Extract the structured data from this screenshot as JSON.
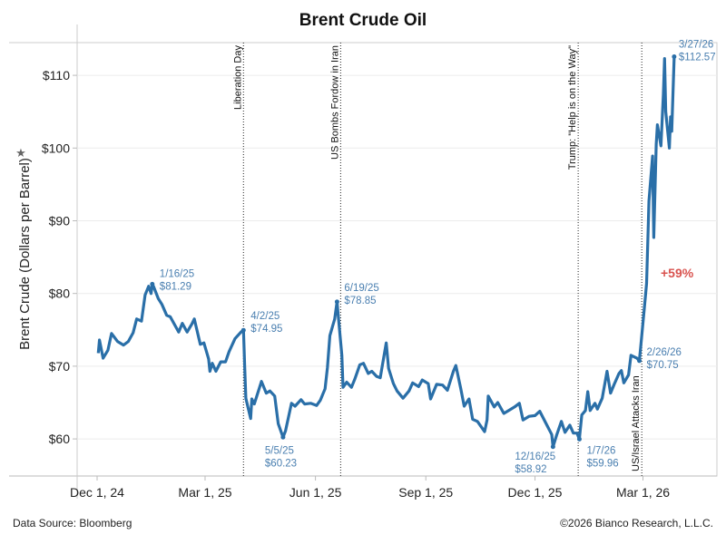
{
  "footer": {
    "source": "Data Source: Bloomberg",
    "copyright": "©2026 Bianco Research, L.L.C."
  },
  "chart_data": {
    "type": "line",
    "title": "Brent Crude Oil",
    "ylabel": "Brent Crude (Dollars per Barrel)",
    "xlabel": "",
    "ylim": [
      54.9,
      114.5
    ],
    "xlim": [
      "2024-11-14",
      "2026-04-30"
    ],
    "grid": true,
    "y_ticks": [
      {
        "value": 60,
        "label": "$60"
      },
      {
        "value": 70,
        "label": "$70"
      },
      {
        "value": 80,
        "label": "$80"
      },
      {
        "value": 90,
        "label": "$90"
      },
      {
        "value": 100,
        "label": "$100"
      },
      {
        "value": 110,
        "label": "$110"
      }
    ],
    "x_ticks": [
      {
        "date": "2024-12-01",
        "label": "Dec 1, 24"
      },
      {
        "date": "2025-03-01",
        "label": "Mar 1, 25"
      },
      {
        "date": "2025-06-01",
        "label": "Jun 1, 25"
      },
      {
        "date": "2025-09-01",
        "label": "Sep 1, 25"
      },
      {
        "date": "2025-12-01",
        "label": "Dec 1, 25"
      },
      {
        "date": "2026-03-01",
        "label": "Mar 1, 26"
      }
    ],
    "line_color": "#2a6fa8",
    "annotation_color": "#4a7fb0",
    "series": [
      {
        "points": [
          [
            "2024-12-02",
            71.8
          ],
          [
            "2024-12-03",
            73.6
          ],
          [
            "2024-12-06",
            71.1
          ],
          [
            "2024-12-10",
            72.2
          ],
          [
            "2024-12-13",
            74.5
          ],
          [
            "2024-12-18",
            73.4
          ],
          [
            "2024-12-23",
            72.9
          ],
          [
            "2024-12-27",
            73.4
          ],
          [
            "2024-12-31",
            74.6
          ],
          [
            "2025-01-03",
            76.5
          ],
          [
            "2025-01-07",
            76.2
          ],
          [
            "2025-01-10",
            79.8
          ],
          [
            "2025-01-13",
            81.0
          ],
          [
            "2025-01-15",
            80.0
          ],
          [
            "2025-01-16",
            81.29
          ],
          [
            "2025-01-17",
            81.0
          ],
          [
            "2025-01-21",
            79.3
          ],
          [
            "2025-01-24",
            78.5
          ],
          [
            "2025-01-28",
            77.0
          ],
          [
            "2025-01-31",
            76.8
          ],
          [
            "2025-02-04",
            75.6
          ],
          [
            "2025-02-07",
            74.7
          ],
          [
            "2025-02-10",
            75.9
          ],
          [
            "2025-02-13",
            75.0
          ],
          [
            "2025-02-14",
            74.7
          ],
          [
            "2025-02-18",
            75.8
          ],
          [
            "2025-02-20",
            76.5
          ],
          [
            "2025-02-25",
            73.0
          ],
          [
            "2025-02-28",
            73.2
          ],
          [
            "2025-03-04",
            71.0
          ],
          [
            "2025-03-05",
            69.3
          ],
          [
            "2025-03-07",
            70.4
          ],
          [
            "2025-03-10",
            69.3
          ],
          [
            "2025-03-14",
            70.6
          ],
          [
            "2025-03-18",
            70.6
          ],
          [
            "2025-03-21",
            72.0
          ],
          [
            "2025-03-26",
            73.8
          ],
          [
            "2025-03-31",
            74.7
          ],
          [
            "2025-04-02",
            74.95
          ],
          [
            "2025-04-03",
            70.1
          ],
          [
            "2025-04-04",
            65.6
          ],
          [
            "2025-04-08",
            62.8
          ],
          [
            "2025-04-09",
            65.5
          ],
          [
            "2025-04-11",
            64.8
          ],
          [
            "2025-04-17",
            67.9
          ],
          [
            "2025-04-21",
            66.3
          ],
          [
            "2025-04-24",
            66.6
          ],
          [
            "2025-04-28",
            65.9
          ],
          [
            "2025-05-01",
            62.1
          ],
          [
            "2025-05-05",
            60.23
          ],
          [
            "2025-05-07",
            61.1
          ],
          [
            "2025-05-12",
            64.9
          ],
          [
            "2025-05-15",
            64.5
          ],
          [
            "2025-05-20",
            65.4
          ],
          [
            "2025-05-23",
            64.8
          ],
          [
            "2025-05-28",
            64.9
          ],
          [
            "2025-06-02",
            64.6
          ],
          [
            "2025-06-05",
            65.3
          ],
          [
            "2025-06-09",
            66.9
          ],
          [
            "2025-06-11",
            69.8
          ],
          [
            "2025-06-13",
            74.2
          ],
          [
            "2025-06-17",
            76.5
          ],
          [
            "2025-06-19",
            78.85
          ],
          [
            "2025-06-20",
            77.0
          ],
          [
            "2025-06-23",
            71.5
          ],
          [
            "2025-06-24",
            67.1
          ],
          [
            "2025-06-27",
            67.8
          ],
          [
            "2025-07-01",
            67.1
          ],
          [
            "2025-07-04",
            68.3
          ],
          [
            "2025-07-08",
            70.2
          ],
          [
            "2025-07-11",
            70.4
          ],
          [
            "2025-07-15",
            69.0
          ],
          [
            "2025-07-18",
            69.3
          ],
          [
            "2025-07-22",
            68.6
          ],
          [
            "2025-07-25",
            68.4
          ],
          [
            "2025-07-30",
            73.2
          ],
          [
            "2025-08-01",
            69.7
          ],
          [
            "2025-08-05",
            67.6
          ],
          [
            "2025-08-08",
            66.6
          ],
          [
            "2025-08-13",
            65.6
          ],
          [
            "2025-08-18",
            66.6
          ],
          [
            "2025-08-21",
            67.7
          ],
          [
            "2025-08-26",
            67.2
          ],
          [
            "2025-08-29",
            68.1
          ],
          [
            "2025-09-03",
            67.6
          ],
          [
            "2025-09-05",
            65.5
          ],
          [
            "2025-09-10",
            67.5
          ],
          [
            "2025-09-15",
            67.4
          ],
          [
            "2025-09-19",
            66.7
          ],
          [
            "2025-09-24",
            69.3
          ],
          [
            "2025-09-26",
            70.1
          ],
          [
            "2025-09-30",
            67.0
          ],
          [
            "2025-10-03",
            64.5
          ],
          [
            "2025-10-07",
            65.5
          ],
          [
            "2025-10-10",
            62.7
          ],
          [
            "2025-10-14",
            62.4
          ],
          [
            "2025-10-20",
            61.0
          ],
          [
            "2025-10-22",
            62.6
          ],
          [
            "2025-10-23",
            65.9
          ],
          [
            "2025-10-28",
            64.4
          ],
          [
            "2025-10-31",
            65.0
          ],
          [
            "2025-11-05",
            63.5
          ],
          [
            "2025-11-10",
            64.0
          ],
          [
            "2025-11-14",
            64.4
          ],
          [
            "2025-11-18",
            64.9
          ],
          [
            "2025-11-21",
            62.6
          ],
          [
            "2025-11-26",
            63.1
          ],
          [
            "2025-12-01",
            63.2
          ],
          [
            "2025-12-05",
            63.8
          ],
          [
            "2025-12-10",
            62.2
          ],
          [
            "2025-12-15",
            60.6
          ],
          [
            "2025-12-16",
            58.92
          ],
          [
            "2025-12-19",
            60.5
          ],
          [
            "2025-12-23",
            62.4
          ],
          [
            "2025-12-26",
            60.9
          ],
          [
            "2025-12-30",
            61.9
          ],
          [
            "2026-01-02",
            60.8
          ],
          [
            "2026-01-05",
            60.8
          ],
          [
            "2026-01-07",
            59.96
          ],
          [
            "2026-01-09",
            63.3
          ],
          [
            "2026-01-12",
            63.9
          ],
          [
            "2026-01-14",
            66.5
          ],
          [
            "2026-01-16",
            63.9
          ],
          [
            "2026-01-20",
            64.9
          ],
          [
            "2026-01-22",
            64.1
          ],
          [
            "2026-01-26",
            65.6
          ],
          [
            "2026-01-29",
            68.3
          ],
          [
            "2026-01-30",
            69.3
          ],
          [
            "2026-02-02",
            66.3
          ],
          [
            "2026-02-05",
            67.5
          ],
          [
            "2026-02-09",
            69.0
          ],
          [
            "2026-02-11",
            69.4
          ],
          [
            "2026-02-13",
            67.7
          ],
          [
            "2026-02-17",
            68.8
          ],
          [
            "2026-02-19",
            71.5
          ],
          [
            "2026-02-24",
            71.1
          ],
          [
            "2026-02-26",
            70.75
          ],
          [
            "2026-02-27",
            72.5
          ],
          [
            "2026-03-02",
            77.7
          ],
          [
            "2026-03-04",
            81.4
          ],
          [
            "2026-03-06",
            92.7
          ],
          [
            "2026-03-09",
            98.9
          ],
          [
            "2026-03-10",
            87.7
          ],
          [
            "2026-03-12",
            100.5
          ],
          [
            "2026-03-13",
            103.2
          ],
          [
            "2026-03-16",
            100.3
          ],
          [
            "2026-03-18",
            107.4
          ],
          [
            "2026-03-19",
            112.3
          ],
          [
            "2026-03-20",
            105.0
          ],
          [
            "2026-03-23",
            100.0
          ],
          [
            "2026-03-24",
            104.3
          ],
          [
            "2026-03-25",
            102.3
          ],
          [
            "2026-03-27",
            112.57
          ]
        ]
      }
    ],
    "annotations": [
      {
        "date": "2025-01-16",
        "value": 81.29,
        "label_date": "1/16/25",
        "label_value": "$81.29"
      },
      {
        "date": "2025-04-02",
        "value": 74.95,
        "label_date": "4/2/25",
        "label_value": "$74.95"
      },
      {
        "date": "2025-05-05",
        "value": 60.23,
        "label_date": "5/5/25",
        "label_value": "$60.23"
      },
      {
        "date": "2025-06-19",
        "value": 78.85,
        "label_date": "6/19/25",
        "label_value": "$78.85"
      },
      {
        "date": "2025-12-16",
        "value": 58.92,
        "label_date": "12/16/25",
        "label_value": "$58.92"
      },
      {
        "date": "2026-01-07",
        "value": 59.96,
        "label_date": "1/7/26",
        "label_value": "$59.96"
      },
      {
        "date": "2026-02-26",
        "value": 70.75,
        "label_date": "2/26/26",
        "label_value": "$70.75"
      },
      {
        "date": "2026-03-27",
        "value": 112.57,
        "label_date": "3/27/26",
        "label_value": "$112.57"
      }
    ],
    "change_label": {
      "text": "+59%",
      "color": "#d9534f"
    },
    "events": [
      {
        "date": "2025-04-02",
        "label": "Liberation Day"
      },
      {
        "date": "2025-06-22",
        "label": "US Bombs Fordow in Iran"
      },
      {
        "date": "2026-01-06",
        "label": "Trump: \"Help is on the Way\""
      },
      {
        "date": "2026-02-28",
        "label": "US/Israel Attacks Iran"
      }
    ]
  }
}
